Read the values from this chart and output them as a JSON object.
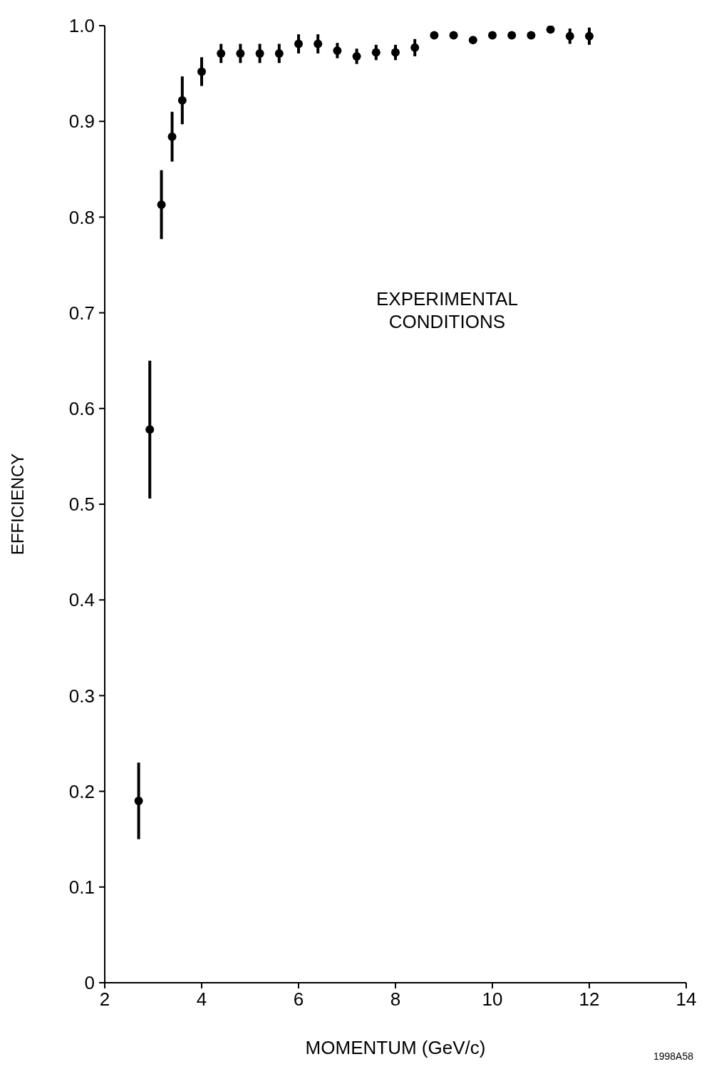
{
  "chart_data": {
    "type": "scatter",
    "xlabel": "MOMENTUM  (GeV/c)",
    "ylabel": "EFFICIENCY",
    "x": [
      2.7,
      2.93,
      3.17,
      3.39,
      3.6,
      4.0,
      4.4,
      4.8,
      5.2,
      5.6,
      6.0,
      6.4,
      6.8,
      7.2,
      7.6,
      8.0,
      8.4,
      8.8,
      9.2,
      9.6,
      10.0,
      10.4,
      10.8,
      11.2,
      11.6,
      12.0
    ],
    "series": [
      {
        "color": "#000000",
        "values": [
          0.19,
          0.578,
          0.813,
          0.884,
          0.922,
          0.952,
          0.971,
          0.971,
          0.971,
          0.971,
          0.981,
          0.981,
          0.974,
          0.968,
          0.972,
          0.972,
          0.977,
          0.99,
          0.99,
          0.985,
          0.99,
          0.99,
          0.99,
          0.996,
          0.989,
          0.989
        ],
        "errors": [
          0.04,
          0.072,
          0.036,
          0.026,
          0.025,
          0.015,
          0.01,
          0.01,
          0.01,
          0.01,
          0.01,
          0.01,
          0.008,
          0.008,
          0.008,
          0.008,
          0.009,
          null,
          null,
          null,
          null,
          null,
          null,
          null,
          0.008,
          0.009
        ]
      }
    ],
    "xlim": [
      2,
      14
    ],
    "xticks": [
      2,
      4,
      6,
      8,
      10,
      12,
      14
    ],
    "ylim": [
      0,
      1.0
    ],
    "yticks": [
      {
        "value": 0,
        "label": "0"
      },
      {
        "value": 0.1,
        "label": "0.1"
      },
      {
        "value": 0.2,
        "label": "0.2"
      },
      {
        "value": 0.3,
        "label": "0.3"
      },
      {
        "value": 0.4,
        "label": "0.4"
      },
      {
        "value": 0.5,
        "label": "0.5"
      },
      {
        "value": 0.6,
        "label": "0.6"
      },
      {
        "value": 0.7,
        "label": "0.7"
      },
      {
        "value": 0.8,
        "label": "0.8"
      },
      {
        "value": 0.9,
        "label": "0.9"
      },
      {
        "value": 1.0,
        "label": "1.0"
      }
    ],
    "marker": "circle",
    "annotations": [
      "EXPERIMENTAL\nCONDITIONS",
      "1998A58"
    ]
  }
}
